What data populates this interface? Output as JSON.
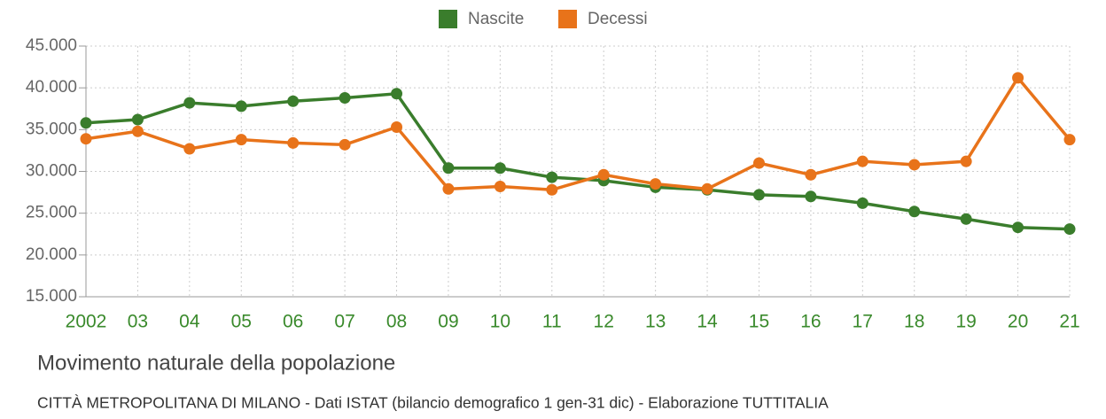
{
  "chart_data": {
    "type": "line",
    "title": "Movimento naturale della popolazione",
    "subtitle": "CITTÀ METROPOLITANA DI MILANO - Dati ISTAT (bilancio demografico 1 gen-31 dic) - Elaborazione TUTTITALIA",
    "categories": [
      "2002",
      "03",
      "04",
      "05",
      "06",
      "07",
      "08",
      "09",
      "10",
      "11",
      "12",
      "13",
      "14",
      "15",
      "16",
      "17",
      "18",
      "19",
      "20",
      "21"
    ],
    "series": [
      {
        "name": "Nascite",
        "color": "#3a7d2c",
        "values": [
          35800,
          36200,
          38200,
          37800,
          38400,
          38800,
          39300,
          30400,
          30400,
          29300,
          28900,
          28100,
          27800,
          27200,
          27000,
          26200,
          25200,
          24300,
          23300,
          23100
        ]
      },
      {
        "name": "Decessi",
        "color": "#e8731a",
        "values": [
          33900,
          34800,
          32700,
          33800,
          33400,
          33200,
          35300,
          27900,
          28200,
          27800,
          29600,
          28500,
          27900,
          31000,
          29600,
          31200,
          30800,
          31200,
          41200,
          33800
        ]
      }
    ],
    "ylim": [
      15000,
      45000
    ],
    "yticks": [
      {
        "value": 15000,
        "label": "15.000"
      },
      {
        "value": 20000,
        "label": "20.000"
      },
      {
        "value": 25000,
        "label": "25.000"
      },
      {
        "value": 30000,
        "label": "30.000"
      },
      {
        "value": 35000,
        "label": "35.000"
      },
      {
        "value": 40000,
        "label": "40.000"
      },
      {
        "value": 45000,
        "label": "45.000"
      }
    ],
    "grid": true
  }
}
